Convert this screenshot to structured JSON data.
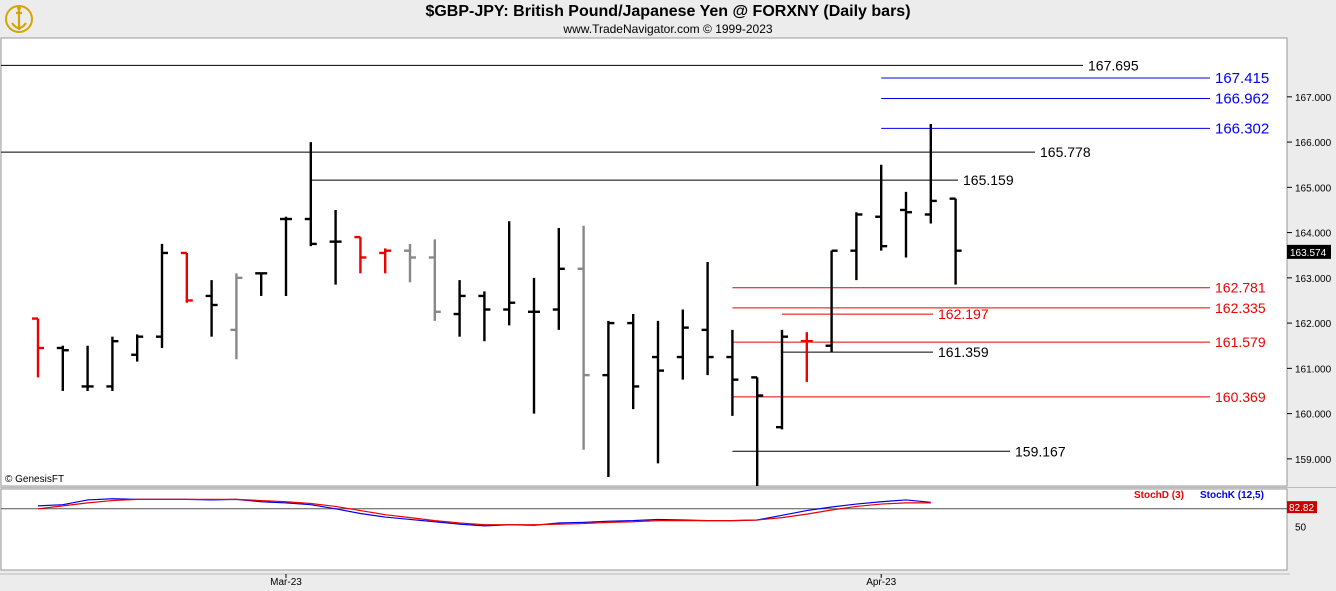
{
  "title": "$GBP-JPY:  British Pound/Japanese Yen @ FORXNY  (Daily bars)",
  "subtitle": "www.TradeNavigator.com © 1999-2023",
  "copyright": "© GenesisFT",
  "chart_data": [
    {
      "type": "ohlc",
      "title": "$GBP-JPY:  British Pound/Japanese Yen @ FORXNY  (Daily bars)",
      "ylim": [
        158.4,
        168.3
      ],
      "y_ticks": [
        "159.000",
        "160.000",
        "161.000",
        "162.000",
        "163.000",
        "164.000",
        "165.000",
        "166.000",
        "167.000"
      ],
      "x_labels": [
        {
          "label": "Mar-23",
          "index": 10
        },
        {
          "label": "Apr-23",
          "index": 34
        }
      ],
      "last_price": "163.574",
      "colors": {
        "up": "#000000",
        "down": "#ee0000",
        "neutral": "#888888",
        "blue": "#0000ee"
      },
      "bars": [
        {
          "o": 162.1,
          "h": 162.1,
          "l": 160.8,
          "c": 161.45,
          "color": "red"
        },
        {
          "o": 161.45,
          "h": 161.5,
          "l": 160.5,
          "c": 161.4,
          "color": "black"
        },
        {
          "o": 160.6,
          "h": 161.5,
          "l": 160.5,
          "c": 160.6,
          "color": "black"
        },
        {
          "o": 160.6,
          "h": 161.7,
          "l": 160.5,
          "c": 161.6,
          "color": "black"
        },
        {
          "o": 161.3,
          "h": 161.75,
          "l": 161.15,
          "c": 161.7,
          "color": "black"
        },
        {
          "o": 161.7,
          "h": 163.75,
          "l": 161.45,
          "c": 163.55,
          "color": "black"
        },
        {
          "o": 163.55,
          "h": 163.55,
          "l": 162.45,
          "c": 162.5,
          "color": "red"
        },
        {
          "o": 162.6,
          "h": 162.95,
          "l": 161.7,
          "c": 162.4,
          "color": "black"
        },
        {
          "o": 161.85,
          "h": 163.1,
          "l": 161.2,
          "c": 163.0,
          "color": "gray"
        },
        {
          "o": 163.1,
          "h": 163.1,
          "l": 162.6,
          "c": 163.1,
          "color": "black"
        },
        {
          "o": 164.3,
          "h": 164.35,
          "l": 162.6,
          "c": 164.3,
          "color": "black"
        },
        {
          "o": 164.3,
          "h": 166.0,
          "l": 163.7,
          "c": 163.75,
          "color": "black"
        },
        {
          "o": 163.8,
          "h": 164.5,
          "l": 162.85,
          "c": 163.8,
          "color": "black"
        },
        {
          "o": 163.9,
          "h": 163.9,
          "l": 163.1,
          "c": 163.45,
          "color": "red"
        },
        {
          "o": 163.55,
          "h": 163.65,
          "l": 163.1,
          "c": 163.6,
          "color": "red"
        },
        {
          "o": 163.6,
          "h": 163.75,
          "l": 162.9,
          "c": 163.45,
          "color": "gray"
        },
        {
          "o": 163.45,
          "h": 163.85,
          "l": 162.05,
          "c": 162.25,
          "color": "gray"
        },
        {
          "o": 162.2,
          "h": 162.95,
          "l": 161.7,
          "c": 162.6,
          "color": "black"
        },
        {
          "o": 162.6,
          "h": 162.7,
          "l": 161.6,
          "c": 162.3,
          "color": "black"
        },
        {
          "o": 162.3,
          "h": 164.25,
          "l": 161.95,
          "c": 162.45,
          "color": "black"
        },
        {
          "o": 162.25,
          "h": 163.0,
          "l": 160.0,
          "c": 162.25,
          "color": "black"
        },
        {
          "o": 162.3,
          "h": 164.1,
          "l": 161.85,
          "c": 163.2,
          "color": "black"
        },
        {
          "o": 163.2,
          "h": 164.15,
          "l": 159.2,
          "c": 160.85,
          "color": "gray"
        },
        {
          "o": 160.85,
          "h": 162.05,
          "l": 158.6,
          "c": 162.0,
          "color": "black"
        },
        {
          "o": 162.0,
          "h": 162.2,
          "l": 160.1,
          "c": 160.6,
          "color": "black"
        },
        {
          "o": 161.25,
          "h": 162.05,
          "l": 158.9,
          "c": 160.95,
          "color": "black"
        },
        {
          "o": 161.25,
          "h": 162.3,
          "l": 160.75,
          "c": 161.9,
          "color": "black"
        },
        {
          "o": 161.85,
          "h": 163.35,
          "l": 160.85,
          "c": 161.25,
          "color": "black"
        },
        {
          "o": 161.25,
          "h": 161.85,
          "l": 159.95,
          "c": 160.75,
          "color": "black"
        },
        {
          "o": 160.8,
          "h": 160.8,
          "l": 158.4,
          "c": 160.4,
          "color": "black"
        },
        {
          "o": 159.7,
          "h": 161.85,
          "l": 159.65,
          "c": 161.7,
          "color": "black"
        },
        {
          "o": 161.6,
          "h": 161.8,
          "l": 160.7,
          "c": 161.6,
          "color": "red"
        },
        {
          "o": 161.5,
          "h": 163.6,
          "l": 161.35,
          "c": 163.6,
          "color": "black"
        },
        {
          "o": 163.6,
          "h": 164.45,
          "l": 162.95,
          "c": 164.4,
          "color": "black"
        },
        {
          "o": 164.35,
          "h": 165.5,
          "l": 163.6,
          "c": 163.7,
          "color": "black"
        },
        {
          "o": 164.5,
          "h": 164.9,
          "l": 163.45,
          "c": 164.45,
          "color": "black"
        },
        {
          "o": 164.4,
          "h": 166.4,
          "l": 164.2,
          "c": 164.7,
          "color": "black"
        },
        {
          "o": 164.75,
          "h": 164.75,
          "l": 162.85,
          "c": 163.6,
          "color": "black"
        }
      ],
      "levels": [
        {
          "value": 167.695,
          "label": "167.695",
          "color": "#000000",
          "from": -2
        },
        {
          "value": 167.415,
          "label": "167.415",
          "color": "#0000ee",
          "from": 34
        },
        {
          "value": 166.962,
          "label": "166.962",
          "color": "#0000ee",
          "from": 34
        },
        {
          "value": 166.302,
          "label": "166.302",
          "color": "#0000ee",
          "from": 34
        },
        {
          "value": 165.778,
          "label": "165.778",
          "color": "#000000",
          "from": -2
        },
        {
          "value": 165.159,
          "label": "165.159",
          "color": "#000000",
          "from": 11
        },
        {
          "value": 162.781,
          "label": "162.781",
          "color": "#ee0000",
          "from": 28
        },
        {
          "value": 162.335,
          "label": "162.335",
          "color": "#ee0000",
          "from": 28
        },
        {
          "value": 162.197,
          "label": "162.197",
          "color": "#ee0000",
          "from": 30
        },
        {
          "value": 161.579,
          "label": "161.579",
          "color": "#ee0000",
          "from": 28
        },
        {
          "value": 161.359,
          "label": "161.359",
          "color": "#000000",
          "from": 30
        },
        {
          "value": 160.369,
          "label": "160.369",
          "color": "#ee0000",
          "from": 28
        },
        {
          "value": 159.167,
          "label": "159.167",
          "color": "#000000",
          "from": 28
        }
      ]
    },
    {
      "type": "line",
      "legend": [
        {
          "name": "StochD (3)",
          "color": "#ee0000"
        },
        {
          "name": "StochK (12,5)",
          "color": "#0000ee"
        }
      ],
      "ylim": [
        0,
        100
      ],
      "y_ticks": [
        "50"
      ],
      "reference_line": 80,
      "last_value": "82.82",
      "series": [
        {
          "name": "StochK (12,5)",
          "color": "#0000ee",
          "values": [
            85,
            87,
            95,
            97,
            96,
            96,
            96,
            95,
            96,
            92,
            90,
            87,
            80,
            72,
            66,
            62,
            58,
            54,
            51,
            53,
            52,
            56,
            57,
            59,
            60,
            62,
            61,
            60,
            60,
            61,
            69,
            77,
            83,
            88,
            92,
            95,
            91,
            null
          ]
        },
        {
          "name": "StochD (3)",
          "color": "#ee0000",
          "values": [
            80,
            85,
            90,
            94,
            96,
            96,
            96,
            96,
            96,
            94,
            92,
            89,
            84,
            77,
            70,
            65,
            60,
            56,
            53,
            53,
            53,
            54,
            55,
            57,
            58,
            60,
            60,
            60,
            60,
            61,
            65,
            71,
            78,
            84,
            88,
            90,
            90,
            null
          ]
        }
      ]
    }
  ]
}
